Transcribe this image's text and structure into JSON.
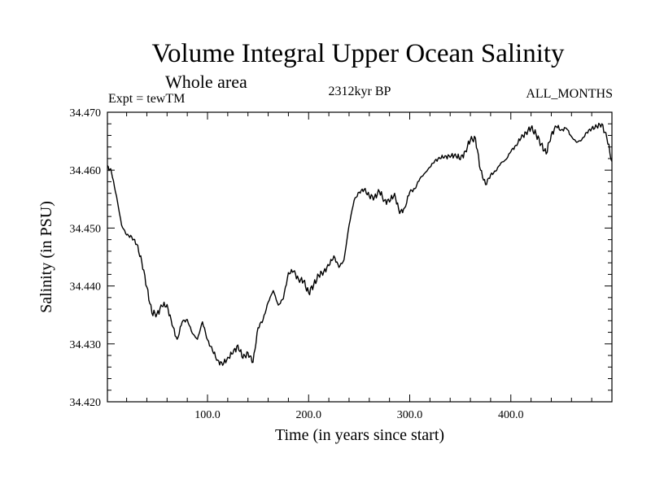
{
  "chart_data": {
    "type": "line",
    "title": "Volume Integral Upper Ocean Salinity",
    "subtitle": "Whole area",
    "left_label": "Expt = tewTM",
    "center_label": "2312kyr BP",
    "right_label": "ALL_MONTHS",
    "xlabel": "Time (in years since start)",
    "ylabel": "Salinity (in PSU)",
    "xlim": [
      1,
      500
    ],
    "ylim": [
      34.42,
      34.47
    ],
    "x_ticks": [
      100,
      200,
      300,
      400
    ],
    "x_tick_labels": [
      "100.0",
      "200.0",
      "300.0",
      "400.0"
    ],
    "y_ticks": [
      34.42,
      34.43,
      34.44,
      34.45,
      34.46,
      34.47
    ],
    "y_tick_labels": [
      "34.420",
      "34.430",
      "34.440",
      "34.450",
      "34.460",
      "34.470"
    ],
    "grid": false,
    "series": [
      {
        "name": "Salinity",
        "x": [
          1,
          5,
          10,
          15,
          20,
          25,
          30,
          35,
          40,
          45,
          50,
          55,
          60,
          65,
          70,
          75,
          80,
          85,
          90,
          95,
          100,
          105,
          110,
          115,
          120,
          125,
          130,
          135,
          140,
          145,
          150,
          155,
          160,
          165,
          170,
          175,
          180,
          185,
          190,
          195,
          200,
          205,
          210,
          215,
          220,
          225,
          230,
          235,
          240,
          245,
          250,
          255,
          260,
          265,
          270,
          275,
          280,
          285,
          290,
          295,
          300,
          305,
          310,
          315,
          320,
          325,
          330,
          335,
          340,
          345,
          350,
          355,
          360,
          365,
          370,
          375,
          380,
          385,
          390,
          395,
          400,
          405,
          410,
          415,
          420,
          425,
          430,
          435,
          440,
          445,
          450,
          455,
          460,
          465,
          470,
          475,
          480,
          485,
          490,
          495,
          500
        ],
        "values": [
          34.4608,
          34.4596,
          34.4555,
          34.4505,
          34.4488,
          34.4485,
          34.4472,
          34.4442,
          34.4398,
          34.4353,
          34.4352,
          34.4365,
          34.4368,
          34.4332,
          34.4308,
          34.4338,
          34.4342,
          34.4318,
          34.4308,
          34.4338,
          34.4307,
          34.4288,
          34.4272,
          34.4263,
          34.4277,
          34.4283,
          34.4298,
          34.4275,
          34.4285,
          34.4268,
          34.4328,
          34.4342,
          34.4372,
          34.4392,
          34.4367,
          34.4378,
          34.4423,
          34.4425,
          34.4412,
          34.4408,
          34.4388,
          34.4402,
          34.4418,
          34.4425,
          34.4435,
          34.4452,
          34.4432,
          34.4445,
          34.4505,
          34.4548,
          34.4562,
          34.4567,
          34.4555,
          34.4553,
          34.4563,
          34.4548,
          34.4545,
          34.456,
          34.4525,
          34.4535,
          34.4562,
          34.4568,
          34.4585,
          34.4595,
          34.4605,
          34.4617,
          34.462,
          34.4625,
          34.4622,
          34.4628,
          34.4618,
          34.4633,
          34.4652,
          34.4655,
          34.46,
          34.4575,
          34.4592,
          34.4598,
          34.4612,
          34.4618,
          34.4632,
          34.4643,
          34.4655,
          34.4665,
          34.4673,
          34.4662,
          34.4645,
          34.4628,
          34.4662,
          34.4675,
          34.467,
          34.4672,
          34.4658,
          34.4648,
          34.4652,
          34.4665,
          34.4672,
          34.4675,
          34.468,
          34.4655,
          34.4615
        ]
      }
    ]
  }
}
